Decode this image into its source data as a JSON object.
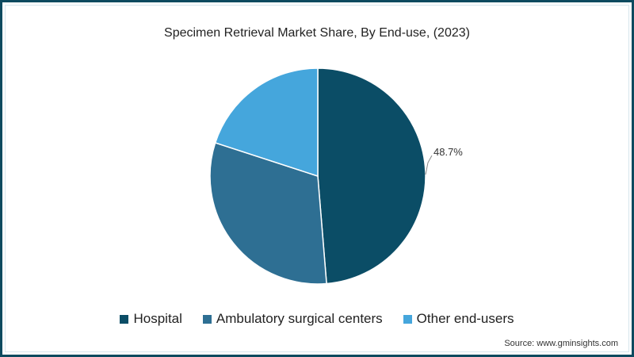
{
  "chart_data": {
    "type": "pie",
    "title": "Specimen Retrieval Market Share, By End-use, (2023)",
    "categories": [
      "Hospital",
      "Ambulatory surgical centers",
      "Other end-users"
    ],
    "values": [
      48.7,
      31.3,
      20.0
    ],
    "colors": [
      "#0b4d66",
      "#2e6f93",
      "#45a6dc"
    ],
    "data_labels": [
      {
        "category": "Hospital",
        "text": "48.7%"
      }
    ],
    "legend_position": "bottom",
    "start_angle": "12 o'clock, clockwise"
  },
  "title": "Specimen Retrieval Market Share, By End-use, (2023)",
  "callout": "48.7%",
  "legend": [
    {
      "label": "Hospital",
      "color": "#0b4d66"
    },
    {
      "label": "Ambulatory surgical centers",
      "color": "#2e6f93"
    },
    {
      "label": "Other end-users",
      "color": "#45a6dc"
    }
  ],
  "source": "Source: www.gminsights.com",
  "frame_color": "#0d4a5f"
}
